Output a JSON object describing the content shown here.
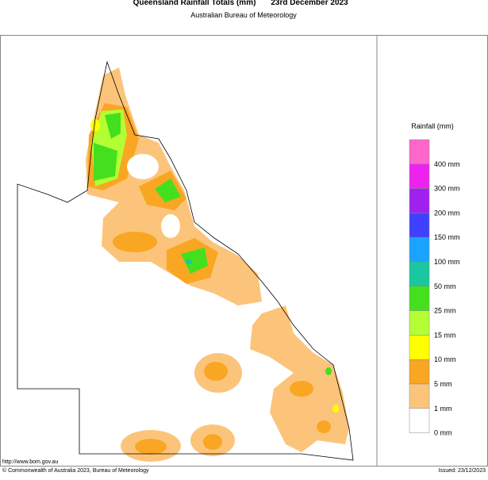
{
  "header": {
    "title": "Queensland Rainfall Totals (mm)",
    "date": "23rd December 2023",
    "subtitle": "Australian Bureau of Meteorology"
  },
  "legend": {
    "title": "Rainfall (mm)",
    "items": [
      {
        "label": "400 mm",
        "color": "#ff66cc"
      },
      {
        "label": "300 mm",
        "color": "#ee22ee"
      },
      {
        "label": "200 mm",
        "color": "#a020f0"
      },
      {
        "label": "150 mm",
        "color": "#4040ff"
      },
      {
        "label": "100 mm",
        "color": "#1aa3ff"
      },
      {
        "label": "50 mm",
        "color": "#19c8a0"
      },
      {
        "label": "25 mm",
        "color": "#44e01e"
      },
      {
        "label": "15 mm",
        "color": "#b3ff33"
      },
      {
        "label": "10 mm",
        "color": "#ffff00"
      },
      {
        "label": "5 mm",
        "color": "#f9a623"
      },
      {
        "label": "1 mm",
        "color": "#fcc47a"
      },
      {
        "label": "0 mm",
        "color": "#ffffff"
      }
    ]
  },
  "footer": {
    "url": "http://www.bom.gov.au",
    "copyright": "© Commonwealth of Australia 2023, Bureau of Meteorology",
    "issued": "Issued: 23/12/2023"
  }
}
